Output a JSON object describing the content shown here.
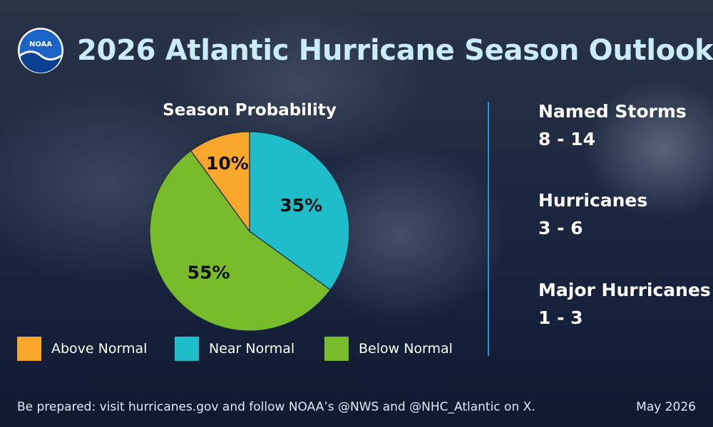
{
  "header": {
    "title": "2026 Atlantic Hurricane Season Outlook",
    "logo_text": "NOAA"
  },
  "chart_data": {
    "type": "pie",
    "title": "Season Probability",
    "slices": [
      {
        "label": "Near Normal",
        "value": 35,
        "display": "35%",
        "color": "#1fbdc9"
      },
      {
        "label": "Below Normal",
        "value": 55,
        "display": "55%",
        "color": "#78bb2a"
      },
      {
        "label": "Above Normal",
        "value": 10,
        "display": "10%",
        "color": "#f9a72c"
      }
    ],
    "legend": [
      {
        "label": "Above Normal",
        "color": "#f9a72c"
      },
      {
        "label": "Near Normal",
        "color": "#1fbdc9"
      },
      {
        "label": "Below Normal",
        "color": "#78bb2a"
      }
    ],
    "legend_position": "bottom"
  },
  "stats": [
    {
      "label": "Named Storms",
      "value": "8 - 14"
    },
    {
      "label": "Hurricanes",
      "value": "3 - 6"
    },
    {
      "label": "Major Hurricanes",
      "value": "1 - 3"
    }
  ],
  "footer": {
    "text": "Be prepared: visit hurricanes.gov and follow NOAA’s @NWS and @NHC_Atlantic on X.",
    "date": "May 2026"
  },
  "colors": {
    "title": "#c9ecf8",
    "divider": "#2f8ed6"
  }
}
